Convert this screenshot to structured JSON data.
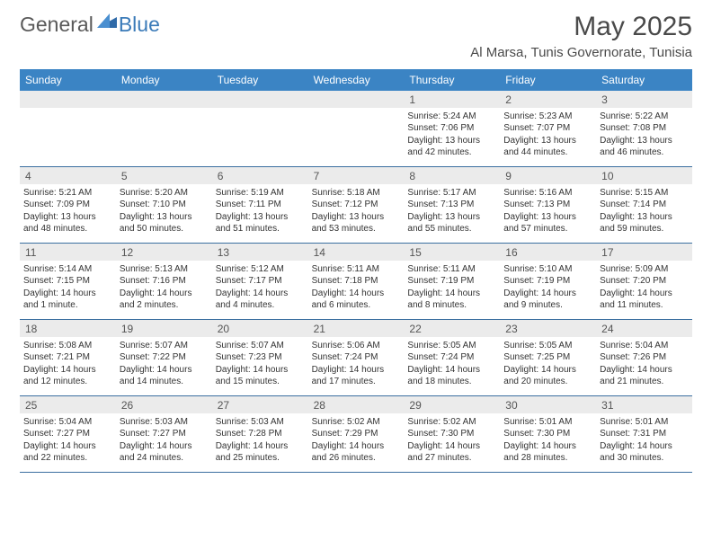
{
  "logo": {
    "text1": "General",
    "text2": "Blue"
  },
  "title": "May 2025",
  "location": "Al Marsa, Tunis Governorate, Tunisia",
  "colors": {
    "header_bg": "#3b84c4",
    "header_text": "#ffffff",
    "daynum_bg": "#ebebeb",
    "rule": "#3b6fa0",
    "body_text": "#333333",
    "logo_grey": "#5a5a5a",
    "logo_blue": "#3a7ab8"
  },
  "typography": {
    "title_fontsize": 30,
    "location_fontsize": 15,
    "dow_fontsize": 12,
    "daynum_fontsize": 12,
    "info_fontsize": 10
  },
  "dow": [
    "Sunday",
    "Monday",
    "Tuesday",
    "Wednesday",
    "Thursday",
    "Friday",
    "Saturday"
  ],
  "weeks": [
    [
      {
        "blank": true
      },
      {
        "blank": true
      },
      {
        "blank": true
      },
      {
        "blank": true
      },
      {
        "n": "1",
        "sunrise": "Sunrise: 5:24 AM",
        "sunset": "Sunset: 7:06 PM",
        "daylight1": "Daylight: 13 hours",
        "daylight2": "and 42 minutes."
      },
      {
        "n": "2",
        "sunrise": "Sunrise: 5:23 AM",
        "sunset": "Sunset: 7:07 PM",
        "daylight1": "Daylight: 13 hours",
        "daylight2": "and 44 minutes."
      },
      {
        "n": "3",
        "sunrise": "Sunrise: 5:22 AM",
        "sunset": "Sunset: 7:08 PM",
        "daylight1": "Daylight: 13 hours",
        "daylight2": "and 46 minutes."
      }
    ],
    [
      {
        "n": "4",
        "sunrise": "Sunrise: 5:21 AM",
        "sunset": "Sunset: 7:09 PM",
        "daylight1": "Daylight: 13 hours",
        "daylight2": "and 48 minutes."
      },
      {
        "n": "5",
        "sunrise": "Sunrise: 5:20 AM",
        "sunset": "Sunset: 7:10 PM",
        "daylight1": "Daylight: 13 hours",
        "daylight2": "and 50 minutes."
      },
      {
        "n": "6",
        "sunrise": "Sunrise: 5:19 AM",
        "sunset": "Sunset: 7:11 PM",
        "daylight1": "Daylight: 13 hours",
        "daylight2": "and 51 minutes."
      },
      {
        "n": "7",
        "sunrise": "Sunrise: 5:18 AM",
        "sunset": "Sunset: 7:12 PM",
        "daylight1": "Daylight: 13 hours",
        "daylight2": "and 53 minutes."
      },
      {
        "n": "8",
        "sunrise": "Sunrise: 5:17 AM",
        "sunset": "Sunset: 7:13 PM",
        "daylight1": "Daylight: 13 hours",
        "daylight2": "and 55 minutes."
      },
      {
        "n": "9",
        "sunrise": "Sunrise: 5:16 AM",
        "sunset": "Sunset: 7:13 PM",
        "daylight1": "Daylight: 13 hours",
        "daylight2": "and 57 minutes."
      },
      {
        "n": "10",
        "sunrise": "Sunrise: 5:15 AM",
        "sunset": "Sunset: 7:14 PM",
        "daylight1": "Daylight: 13 hours",
        "daylight2": "and 59 minutes."
      }
    ],
    [
      {
        "n": "11",
        "sunrise": "Sunrise: 5:14 AM",
        "sunset": "Sunset: 7:15 PM",
        "daylight1": "Daylight: 14 hours",
        "daylight2": "and 1 minute."
      },
      {
        "n": "12",
        "sunrise": "Sunrise: 5:13 AM",
        "sunset": "Sunset: 7:16 PM",
        "daylight1": "Daylight: 14 hours",
        "daylight2": "and 2 minutes."
      },
      {
        "n": "13",
        "sunrise": "Sunrise: 5:12 AM",
        "sunset": "Sunset: 7:17 PM",
        "daylight1": "Daylight: 14 hours",
        "daylight2": "and 4 minutes."
      },
      {
        "n": "14",
        "sunrise": "Sunrise: 5:11 AM",
        "sunset": "Sunset: 7:18 PM",
        "daylight1": "Daylight: 14 hours",
        "daylight2": "and 6 minutes."
      },
      {
        "n": "15",
        "sunrise": "Sunrise: 5:11 AM",
        "sunset": "Sunset: 7:19 PM",
        "daylight1": "Daylight: 14 hours",
        "daylight2": "and 8 minutes."
      },
      {
        "n": "16",
        "sunrise": "Sunrise: 5:10 AM",
        "sunset": "Sunset: 7:19 PM",
        "daylight1": "Daylight: 14 hours",
        "daylight2": "and 9 minutes."
      },
      {
        "n": "17",
        "sunrise": "Sunrise: 5:09 AM",
        "sunset": "Sunset: 7:20 PM",
        "daylight1": "Daylight: 14 hours",
        "daylight2": "and 11 minutes."
      }
    ],
    [
      {
        "n": "18",
        "sunrise": "Sunrise: 5:08 AM",
        "sunset": "Sunset: 7:21 PM",
        "daylight1": "Daylight: 14 hours",
        "daylight2": "and 12 minutes."
      },
      {
        "n": "19",
        "sunrise": "Sunrise: 5:07 AM",
        "sunset": "Sunset: 7:22 PM",
        "daylight1": "Daylight: 14 hours",
        "daylight2": "and 14 minutes."
      },
      {
        "n": "20",
        "sunrise": "Sunrise: 5:07 AM",
        "sunset": "Sunset: 7:23 PM",
        "daylight1": "Daylight: 14 hours",
        "daylight2": "and 15 minutes."
      },
      {
        "n": "21",
        "sunrise": "Sunrise: 5:06 AM",
        "sunset": "Sunset: 7:24 PM",
        "daylight1": "Daylight: 14 hours",
        "daylight2": "and 17 minutes."
      },
      {
        "n": "22",
        "sunrise": "Sunrise: 5:05 AM",
        "sunset": "Sunset: 7:24 PM",
        "daylight1": "Daylight: 14 hours",
        "daylight2": "and 18 minutes."
      },
      {
        "n": "23",
        "sunrise": "Sunrise: 5:05 AM",
        "sunset": "Sunset: 7:25 PM",
        "daylight1": "Daylight: 14 hours",
        "daylight2": "and 20 minutes."
      },
      {
        "n": "24",
        "sunrise": "Sunrise: 5:04 AM",
        "sunset": "Sunset: 7:26 PM",
        "daylight1": "Daylight: 14 hours",
        "daylight2": "and 21 minutes."
      }
    ],
    [
      {
        "n": "25",
        "sunrise": "Sunrise: 5:04 AM",
        "sunset": "Sunset: 7:27 PM",
        "daylight1": "Daylight: 14 hours",
        "daylight2": "and 22 minutes."
      },
      {
        "n": "26",
        "sunrise": "Sunrise: 5:03 AM",
        "sunset": "Sunset: 7:27 PM",
        "daylight1": "Daylight: 14 hours",
        "daylight2": "and 24 minutes."
      },
      {
        "n": "27",
        "sunrise": "Sunrise: 5:03 AM",
        "sunset": "Sunset: 7:28 PM",
        "daylight1": "Daylight: 14 hours",
        "daylight2": "and 25 minutes."
      },
      {
        "n": "28",
        "sunrise": "Sunrise: 5:02 AM",
        "sunset": "Sunset: 7:29 PM",
        "daylight1": "Daylight: 14 hours",
        "daylight2": "and 26 minutes."
      },
      {
        "n": "29",
        "sunrise": "Sunrise: 5:02 AM",
        "sunset": "Sunset: 7:30 PM",
        "daylight1": "Daylight: 14 hours",
        "daylight2": "and 27 minutes."
      },
      {
        "n": "30",
        "sunrise": "Sunrise: 5:01 AM",
        "sunset": "Sunset: 7:30 PM",
        "daylight1": "Daylight: 14 hours",
        "daylight2": "and 28 minutes."
      },
      {
        "n": "31",
        "sunrise": "Sunrise: 5:01 AM",
        "sunset": "Sunset: 7:31 PM",
        "daylight1": "Daylight: 14 hours",
        "daylight2": "and 30 minutes."
      }
    ]
  ]
}
